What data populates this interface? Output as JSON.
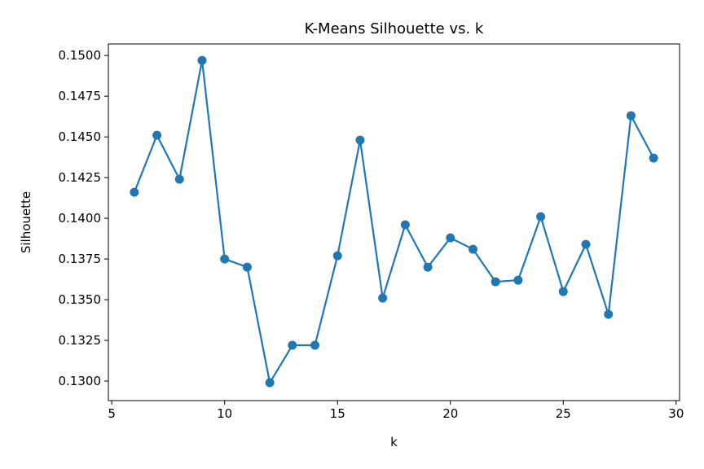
{
  "chart_data": {
    "type": "line",
    "title": "K-Means Silhouette vs. k",
    "xlabel": "k",
    "ylabel": "Silhouette",
    "xlim": [
      4.85,
      30.15
    ],
    "ylim": [
      0.1288,
      0.15071
    ],
    "grid": false,
    "x_ticks": [
      5,
      10,
      15,
      20,
      25,
      30
    ],
    "y_ticks": [
      0.13,
      0.1325,
      0.135,
      0.1375,
      0.14,
      0.1425,
      0.145,
      0.1475,
      0.15
    ],
    "x_tick_labels": [
      "5",
      "10",
      "15",
      "20",
      "25",
      "30"
    ],
    "y_tick_labels": [
      "0.1300",
      "0.1325",
      "0.1350",
      "0.1375",
      "0.1400",
      "0.1425",
      "0.1450",
      "0.1475",
      "0.1500"
    ],
    "series": [
      {
        "color": "#1f77b4",
        "marker": "circle",
        "x": [
          6,
          7,
          8,
          9,
          10,
          11,
          12,
          13,
          14,
          15,
          16,
          17,
          18,
          19,
          20,
          21,
          22,
          23,
          24,
          25,
          26,
          27,
          28,
          29
        ],
        "y": [
          0.1416,
          0.1451,
          0.1424,
          0.1497,
          0.1375,
          0.137,
          0.1299,
          0.1322,
          0.1322,
          0.1377,
          0.1448,
          0.1351,
          0.1396,
          0.137,
          0.1388,
          0.1381,
          0.1361,
          0.1362,
          0.1401,
          0.1355,
          0.1384,
          0.1341,
          0.1463,
          0.1437
        ]
      }
    ]
  }
}
